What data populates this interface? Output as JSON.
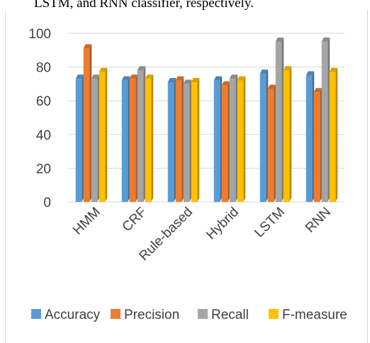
{
  "top_text": "LSTM, and RNN classifier, respectively.",
  "chart_data": {
    "type": "bar",
    "categories": [
      "HMM",
      "CRF",
      "Rule-based",
      "Hybrid",
      "LSTM",
      "RNN"
    ],
    "series": [
      {
        "name": "Accuracy",
        "color": "#5B9BD5",
        "values": [
          73,
          72,
          71,
          72,
          76,
          75
        ]
      },
      {
        "name": "Precision",
        "color": "#ED7D31",
        "values": [
          91,
          73,
          72,
          69,
          67,
          65
        ]
      },
      {
        "name": "Recall",
        "color": "#A5A5A5",
        "values": [
          73,
          78,
          70,
          73,
          95,
          95
        ]
      },
      {
        "name": "F-measure",
        "color": "#FFC000",
        "values": [
          77,
          73,
          71,
          72,
          78,
          77
        ]
      }
    ],
    "yticks": [
      0,
      20,
      40,
      60,
      80,
      100
    ],
    "ylim": [
      0,
      100
    ],
    "grid": true,
    "legend": "bottom",
    "style": "3d-column"
  }
}
